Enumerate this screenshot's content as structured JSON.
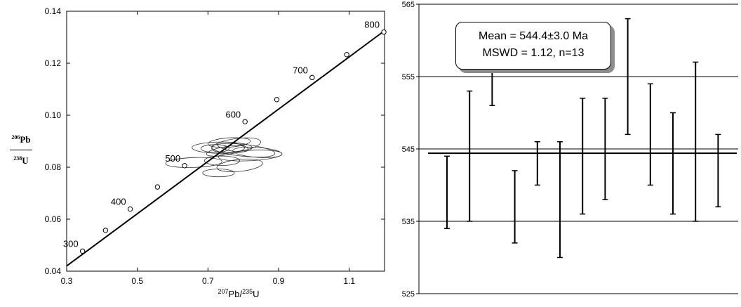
{
  "chart_data": [
    {
      "type": "scatter",
      "subtype": "concordia",
      "xlabel": {
        "sup1": "207",
        "base1": "Pb/",
        "sup2": "235",
        "base2": "U"
      },
      "ylabel": {
        "num_sup": "206",
        "num_base": "Pb",
        "den_sup": "238",
        "den_base": "U"
      },
      "xlim": [
        0.3,
        1.2
      ],
      "ylim": [
        0.04,
        0.14
      ],
      "x_ticks": [
        "0.3",
        "0.5",
        "0.7",
        "0.9",
        "1.1"
      ],
      "y_ticks": [
        "0.04",
        "0.06",
        "0.08",
        "0.10",
        "0.12",
        "0.14"
      ],
      "concordia_points": [
        {
          "age": "300",
          "x": 0.345,
          "y": 0.0477,
          "labeled": true
        },
        {
          "age": "",
          "x": 0.41,
          "y": 0.0557,
          "labeled": false
        },
        {
          "age": "400",
          "x": 0.48,
          "y": 0.0639,
          "labeled": true
        },
        {
          "age": "",
          "x": 0.557,
          "y": 0.0724,
          "labeled": false
        },
        {
          "age": "500",
          "x": 0.634,
          "y": 0.0806,
          "labeled": true
        },
        {
          "age": "600",
          "x": 0.805,
          "y": 0.0975,
          "labeled": true
        },
        {
          "age": "",
          "x": 0.895,
          "y": 0.106,
          "labeled": false
        },
        {
          "age": "700",
          "x": 0.995,
          "y": 0.1145,
          "labeled": true
        },
        {
          "age": "",
          "x": 1.093,
          "y": 0.1233,
          "labeled": false
        },
        {
          "age": "800",
          "x": 1.198,
          "y": 0.132,
          "labeled": true
        }
      ],
      "concordia_line": {
        "x": [
          0.3,
          1.2
        ],
        "y": [
          0.042,
          0.1325
        ]
      },
      "error_ellipses": [
        {
          "cx": 0.74,
          "cy": 0.0875,
          "rx": 0.085,
          "ry": 0.0022,
          "angle": 0
        },
        {
          "cx": 0.78,
          "cy": 0.0885,
          "rx": 0.07,
          "ry": 0.0025,
          "angle": -8
        },
        {
          "cx": 0.8,
          "cy": 0.0865,
          "rx": 0.09,
          "ry": 0.0023,
          "angle": 6
        },
        {
          "cx": 0.76,
          "cy": 0.0895,
          "rx": 0.06,
          "ry": 0.0018,
          "angle": -4
        },
        {
          "cx": 0.82,
          "cy": 0.0845,
          "rx": 0.09,
          "ry": 0.002,
          "angle": -3
        },
        {
          "cx": 0.74,
          "cy": 0.0825,
          "rx": 0.05,
          "ry": 0.0018,
          "angle": 0
        },
        {
          "cx": 0.79,
          "cy": 0.0807,
          "rx": 0.065,
          "ry": 0.0023,
          "angle": -6
        },
        {
          "cx": 0.66,
          "cy": 0.0818,
          "rx": 0.08,
          "ry": 0.0019,
          "angle": -2
        },
        {
          "cx": 0.72,
          "cy": 0.0872,
          "rx": 0.04,
          "ry": 0.0015,
          "angle": 0
        },
        {
          "cx": 0.77,
          "cy": 0.0878,
          "rx": 0.045,
          "ry": 0.0016,
          "angle": 10
        },
        {
          "cx": 0.73,
          "cy": 0.0778,
          "rx": 0.045,
          "ry": 0.0015,
          "angle": 0
        },
        {
          "cx": 0.84,
          "cy": 0.0857,
          "rx": 0.07,
          "ry": 0.0019,
          "angle": 4
        },
        {
          "cx": 0.75,
          "cy": 0.0863,
          "rx": 0.055,
          "ry": 0.0016,
          "angle": -10
        }
      ],
      "grid": false
    },
    {
      "type": "errorbar",
      "ylim": [
        525,
        565
      ],
      "y_ticks": [
        "525",
        "535",
        "545",
        "555",
        "565"
      ],
      "gridlines": [
        535,
        545,
        555,
        565
      ],
      "mean": 544.4,
      "values": [
        539,
        544,
        555,
        537,
        543,
        538,
        544,
        545,
        555,
        547,
        543,
        546,
        542
      ],
      "lower": [
        534,
        535,
        551,
        532,
        540,
        530,
        536,
        538,
        547,
        540,
        536,
        535,
        537
      ],
      "upper": [
        544,
        553,
        559,
        542,
        546,
        546,
        552,
        552,
        563,
        554,
        550,
        557,
        547
      ],
      "stats": {
        "line1": "Mean = 544.4±3.0 Ma",
        "line2": "MSWD = 1.12, n=13"
      }
    }
  ]
}
